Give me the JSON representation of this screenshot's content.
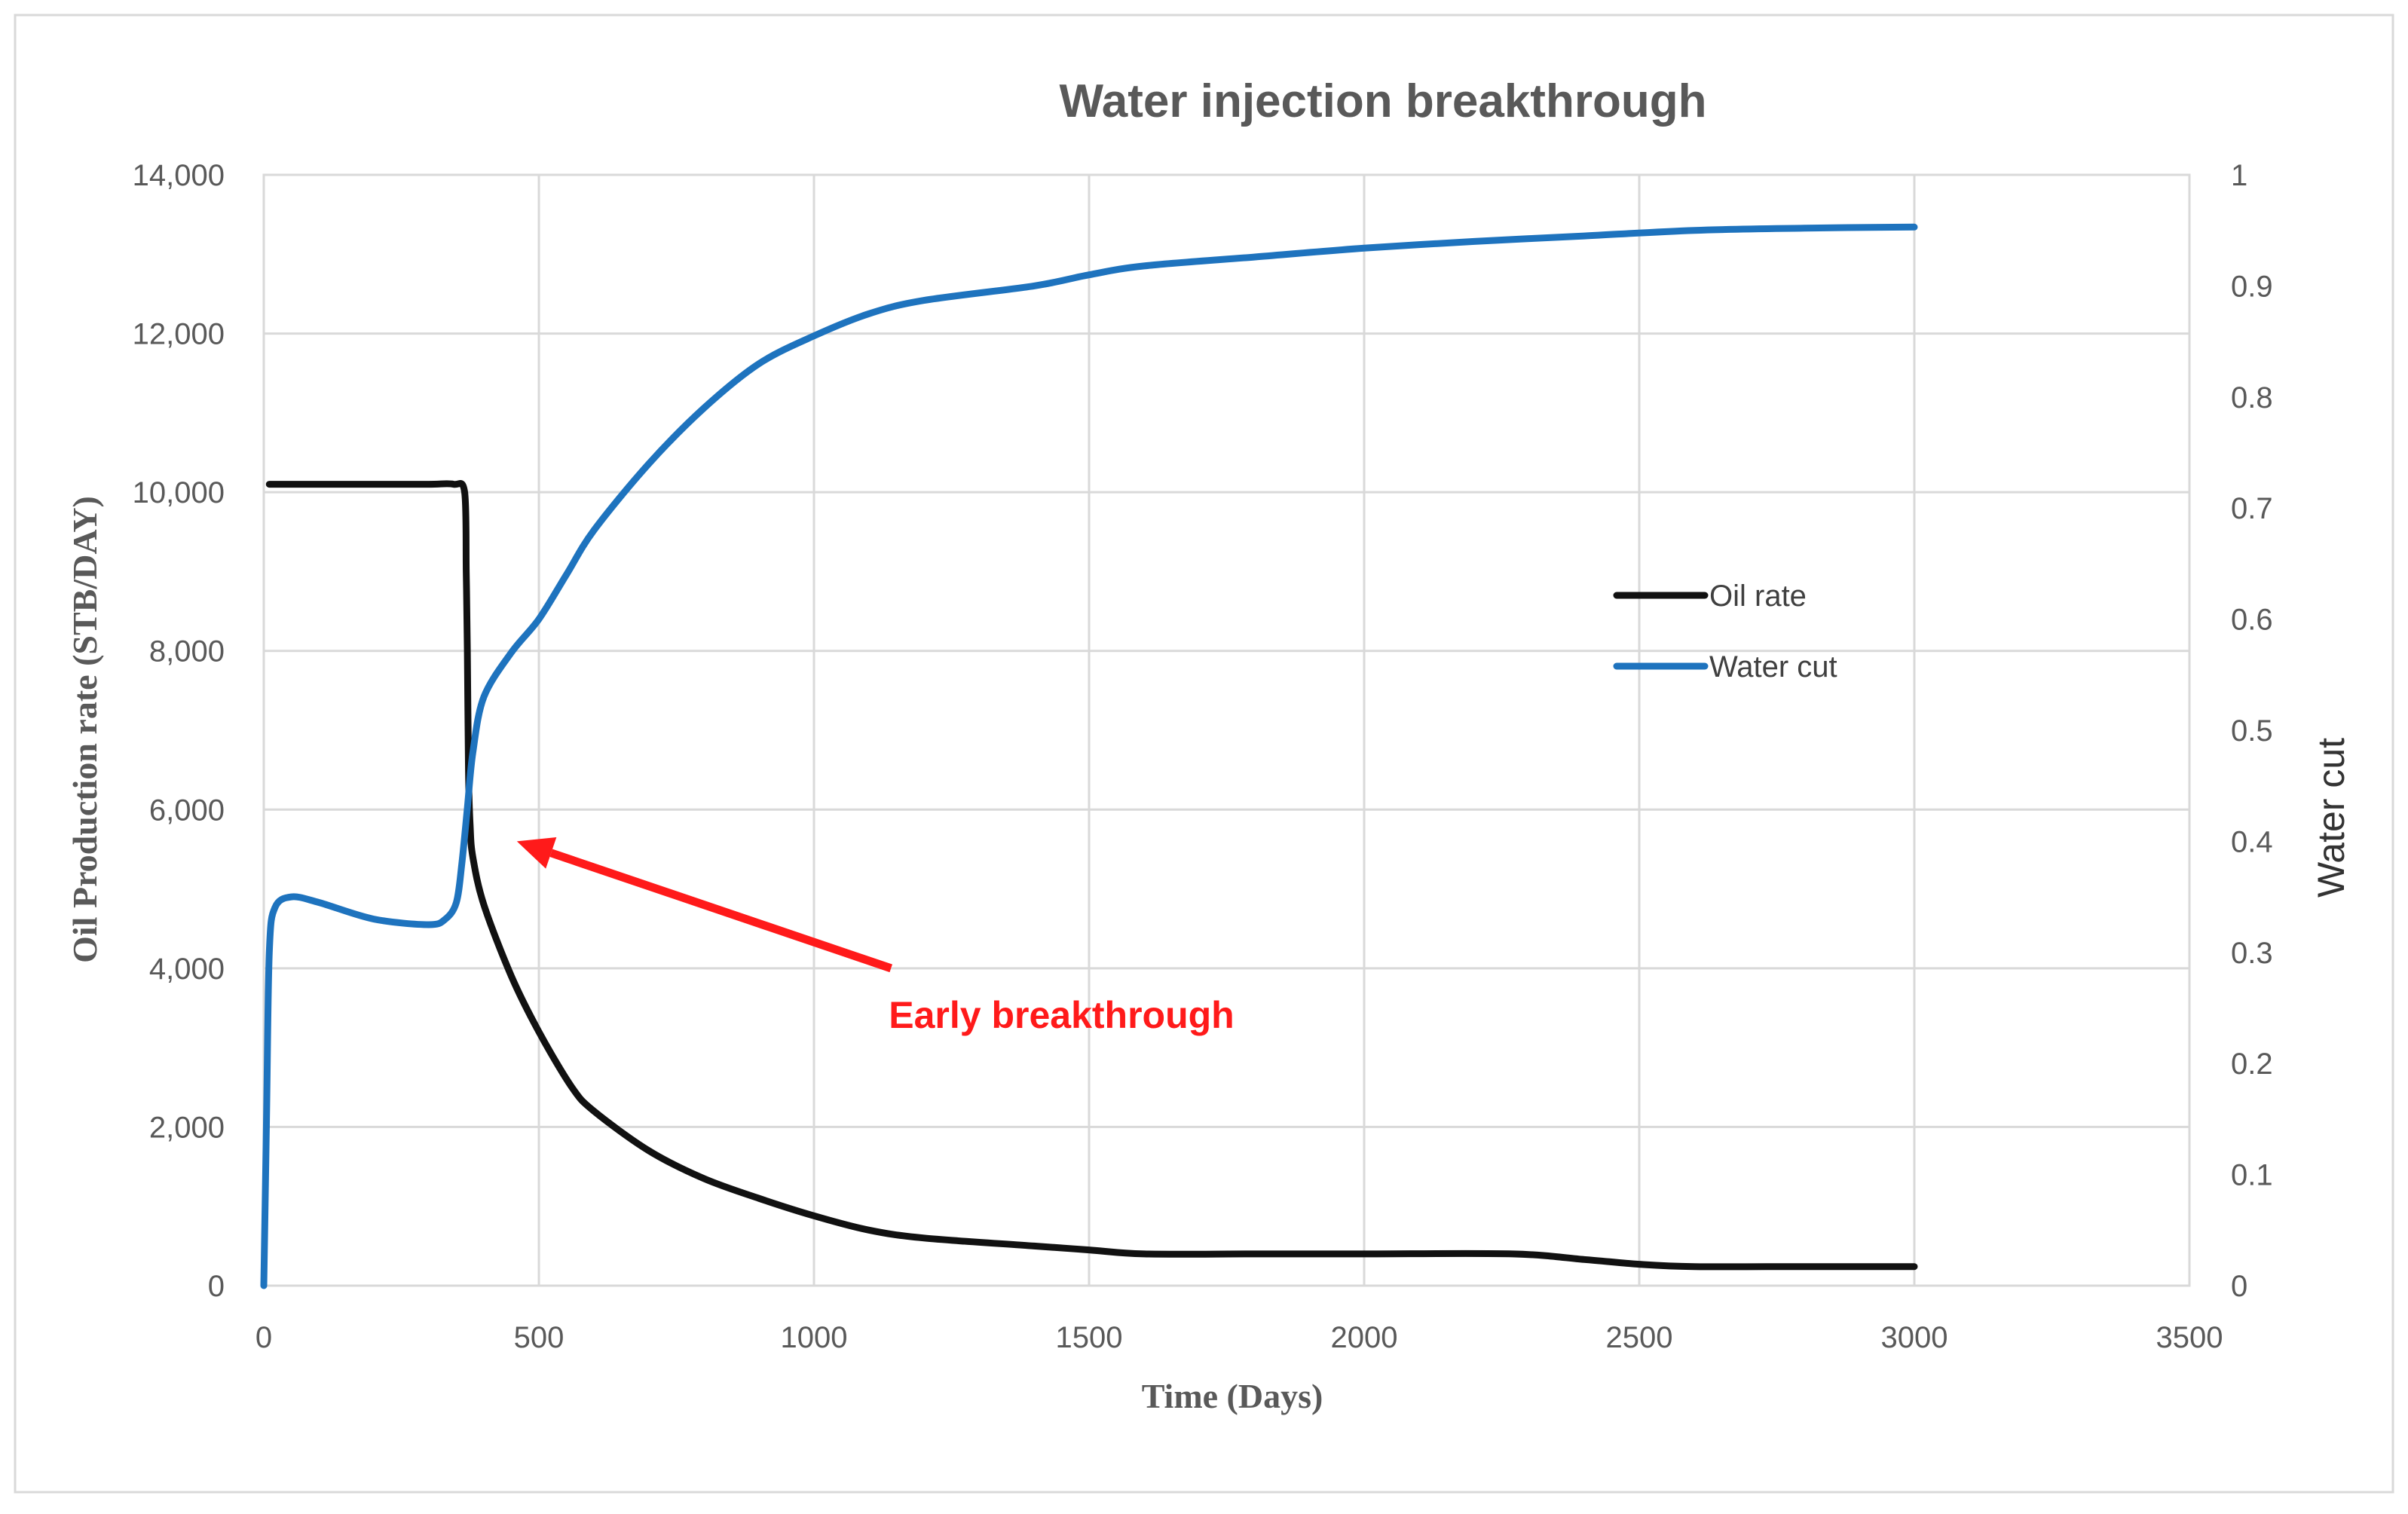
{
  "chart_data": {
    "type": "line",
    "title": "Water injection breakthrough",
    "xlabel": "Time (Days)",
    "ylabel_left": "Oil Production  rate (STB/DAY)",
    "ylabel_right": "Water cut",
    "xlim": [
      0,
      3500
    ],
    "ylim_left": [
      0,
      14000
    ],
    "ylim_right": [
      0,
      1
    ],
    "x_ticks": [
      0,
      500,
      1000,
      1500,
      2000,
      2500,
      3000,
      3500
    ],
    "x_tick_labels": [
      "0",
      "500",
      "1000",
      "1500",
      "2000",
      "2500",
      "3000",
      "3500"
    ],
    "y_left_ticks": [
      0,
      2000,
      4000,
      6000,
      8000,
      10000,
      12000,
      14000
    ],
    "y_left_tick_labels": [
      "0",
      "2,000",
      "4,000",
      "6,000",
      "8,000",
      "10,000",
      "12,000",
      "14,000"
    ],
    "y_right_ticks": [
      0,
      0.1,
      0.2,
      0.3,
      0.4,
      0.5,
      0.6,
      0.7,
      0.8,
      0.9,
      1
    ],
    "y_right_tick_labels": [
      "0",
      "0.1",
      "0.2",
      "0.3",
      "0.4",
      "0.5",
      "0.6",
      "0.7",
      "0.8",
      "0.9",
      "1"
    ],
    "grid": true,
    "legend_position": "center-right",
    "series": [
      {
        "name": "Oil rate",
        "axis": "left",
        "color": "#111111",
        "x": [
          10,
          100,
          200,
          300,
          345,
          365,
          368,
          370,
          372,
          375,
          380,
          400,
          450,
          500,
          560,
          600,
          700,
          800,
          900,
          1000,
          1100,
          1200,
          1400,
          1500,
          1600,
          1800,
          2000,
          2270,
          2400,
          2500,
          2600,
          2800,
          3000
        ],
        "values": [
          10100,
          10100,
          10100,
          10100,
          10100,
          10000,
          9000,
          8000,
          6500,
          5800,
          5400,
          4800,
          3900,
          3200,
          2500,
          2200,
          1700,
          1350,
          1100,
          880,
          700,
          600,
          500,
          450,
          400,
          400,
          400,
          400,
          330,
          270,
          240,
          240,
          240
        ]
      },
      {
        "name": "Water cut",
        "axis": "right",
        "color": "#1e73be",
        "x": [
          0,
          5,
          10,
          20,
          50,
          100,
          200,
          300,
          330,
          350,
          360,
          370,
          380,
          400,
          450,
          500,
          550,
          600,
          700,
          800,
          900,
          1000,
          1100,
          1200,
          1400,
          1500,
          1600,
          1800,
          2000,
          2200,
          2400,
          2600,
          2800,
          3000
        ],
        "values": [
          0.0,
          0.15,
          0.3,
          0.34,
          0.35,
          0.345,
          0.33,
          0.325,
          0.33,
          0.345,
          0.38,
          0.43,
          0.48,
          0.53,
          0.57,
          0.6,
          0.64,
          0.68,
          0.74,
          0.79,
          0.83,
          0.855,
          0.875,
          0.887,
          0.9,
          0.91,
          0.918,
          0.926,
          0.934,
          0.94,
          0.945,
          0.95,
          0.952,
          0.953
        ]
      }
    ],
    "annotations": [
      {
        "text": "Early breakthrough",
        "color": "#ff1a1a",
        "arrow_from": [
          1140,
          4000
        ],
        "arrow_to": [
          460,
          5600
        ],
        "text_at": [
          1450,
          3250
        ]
      }
    ]
  }
}
